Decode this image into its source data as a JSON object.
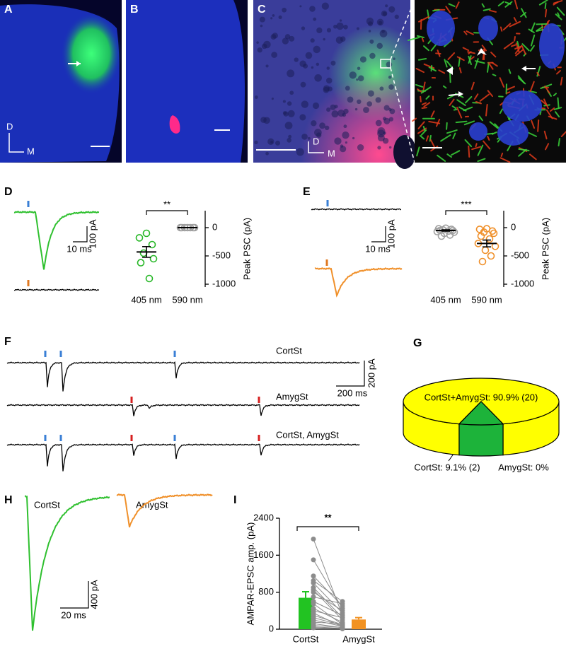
{
  "panel_labels": [
    "A",
    "B",
    "C",
    "D",
    "E",
    "F",
    "G",
    "H",
    "I"
  ],
  "orientation_labels": {
    "a": [
      "D",
      "M"
    ],
    "c": [
      "D",
      "M"
    ]
  },
  "scale_bars": {
    "d": [
      "10 ms",
      "100 pA"
    ],
    "e": [
      "10 ms",
      "100 pA"
    ],
    "f": [
      "200 ms",
      "200 pA"
    ],
    "h": [
      "20 ms",
      "400 pA"
    ]
  },
  "trace_labels": {
    "f": [
      "CortSt",
      "AmygSt",
      "CortSt, AmygSt"
    ],
    "h": [
      "CortSt",
      "AmygSt"
    ]
  },
  "chart_data": [
    {
      "type": "scatter",
      "categories": [
        "405 nm",
        "590 nm"
      ],
      "y_label": "Peak PSC (pA)",
      "ylim": [
        -1050,
        300
      ],
      "yticks": [
        -1000,
        -500,
        0
      ],
      "significance": "**",
      "groups": [
        {
          "color": "#28b828",
          "values": [
            -100,
            -180,
            -300,
            -450,
            -550,
            -620,
            -900
          ],
          "mean": -430,
          "sem": 95
        },
        {
          "color": "#a0a0a0",
          "values": [
            0,
            0,
            0,
            0,
            0,
            0,
            0
          ],
          "mean": 0,
          "sem": 0
        }
      ]
    },
    {
      "type": "scatter",
      "categories": [
        "405 nm",
        "590 nm"
      ],
      "y_label": "Peak PSC (pA)",
      "ylim": [
        -1050,
        300
      ],
      "yticks": [
        -1000,
        -500,
        0
      ],
      "significance": "***",
      "groups": [
        {
          "color": "#a0a0a0",
          "values": [
            -10,
            -20,
            -30,
            -40,
            -50,
            -50,
            -60,
            -70,
            -80,
            -100,
            -130,
            -150
          ],
          "mean": -50,
          "sem": 12
        },
        {
          "color": "#f0902a",
          "values": [
            -20,
            -30,
            -60,
            -80,
            -100,
            -150,
            -200,
            -280,
            -330,
            -400,
            -500,
            -600
          ],
          "mean": -280,
          "sem": 60
        }
      ]
    },
    {
      "type": "pie",
      "slices": [
        {
          "label": "CortSt+AmygSt: 90.9% (20)",
          "value": 90.9,
          "color": "#ffff00"
        },
        {
          "label": "CortSt: 9.1% (2)",
          "value": 9.1,
          "color": "#1db33a"
        },
        {
          "label": "AmygSt: 0%",
          "value": 0
        }
      ]
    },
    {
      "type": "bar",
      "categories": [
        "CortSt",
        "AmygSt"
      ],
      "y_label": "AMPAR-EPSC amp. (pA)",
      "values": [
        680,
        210
      ],
      "errors": [
        130,
        40
      ],
      "colors": [
        "#22c322",
        "#f29222"
      ],
      "ylim": [
        0,
        2400
      ],
      "yticks": [
        0,
        800,
        1600,
        2400
      ],
      "significance": "**",
      "paired_color": "#8c8c8c",
      "paired": [
        [
          1950,
          1500,
          1150,
          1050,
          1000,
          900,
          850,
          800,
          700,
          600,
          550,
          450,
          400,
          350,
          300,
          250,
          200,
          150,
          120,
          80,
          50,
          30
        ],
        [
          300,
          450,
          500,
          600,
          350,
          250,
          200,
          400,
          550,
          300,
          100,
          150,
          250,
          50,
          100,
          80,
          60,
          120,
          30,
          40,
          20,
          10
        ]
      ]
    }
  ]
}
